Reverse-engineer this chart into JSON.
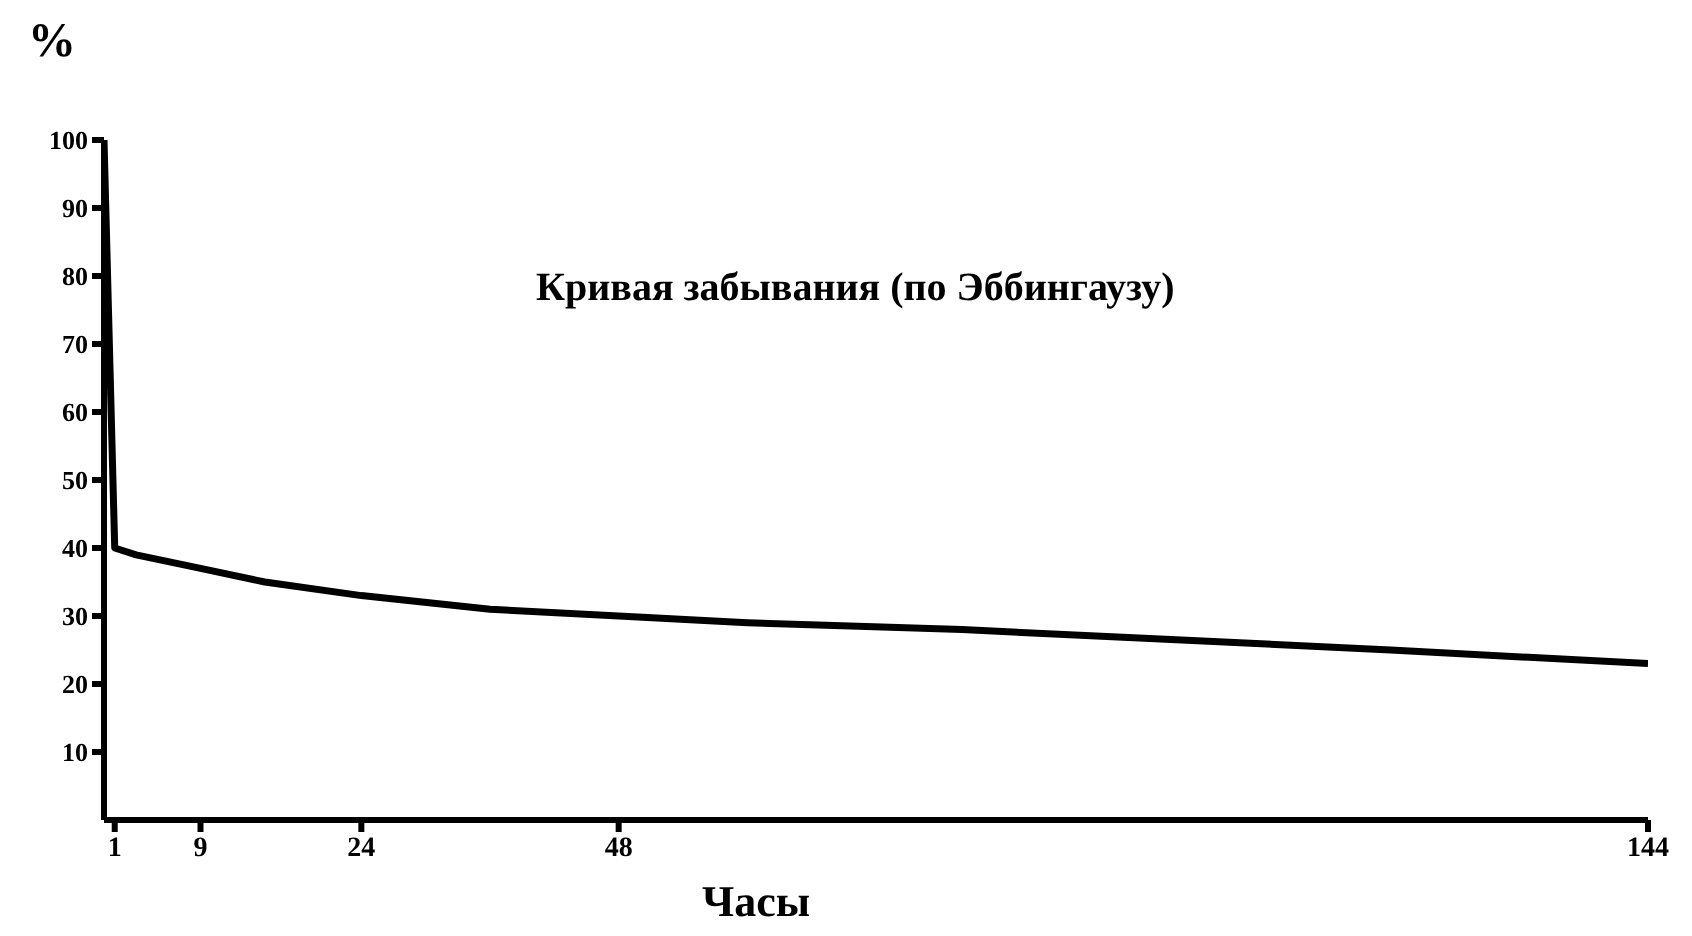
{
  "chart_data": {
    "type": "line",
    "title": "Кривая забывания (по Эббингаузу)",
    "xlabel": "Часы",
    "ylabel": "%",
    "x": [
      0,
      1,
      3,
      6,
      9,
      15,
      24,
      36,
      48,
      60,
      80,
      100,
      120,
      144
    ],
    "series": [
      {
        "color": "#000000",
        "values": [
          100,
          40,
          39,
          38,
          37,
          35,
          33,
          31,
          30,
          29,
          28,
          26.5,
          25,
          23
        ]
      }
    ],
    "xlim": [
      0,
      144
    ],
    "xticks": [
      1,
      9,
      24,
      48,
      144
    ],
    "ylim": [
      0,
      100
    ],
    "yticks": [
      10,
      20,
      30,
      40,
      50,
      60,
      70,
      80,
      90,
      100
    ],
    "grid": false,
    "legend": false,
    "marker": "none",
    "line_style": "solid"
  }
}
